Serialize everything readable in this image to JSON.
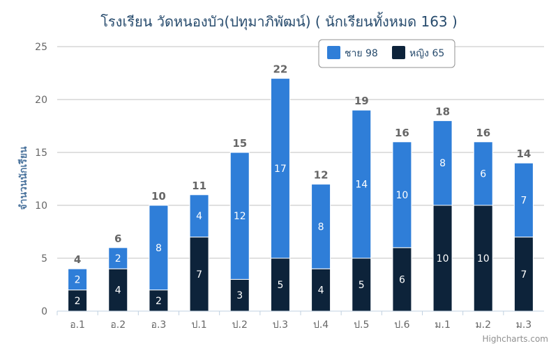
{
  "chart_data": {
    "type": "bar",
    "stacked": true,
    "title": "โรงเรียน วัดหนองบัว(ปทุมาภิพัฒน์) ( นักเรียนทั้งหมด 163 )",
    "ylabel": "จำนวนนักเรียน",
    "xlabel": "",
    "ylim": [
      0,
      25
    ],
    "yticks": [
      0,
      5,
      10,
      15,
      20,
      25
    ],
    "grid": true,
    "legend_position": "top-right",
    "categories": [
      "อ.1",
      "อ.2",
      "อ.3",
      "ป.1",
      "ป.2",
      "ป.3",
      "ป.4",
      "ป.5",
      "ป.6",
      "ม.1",
      "ม.2",
      "ม.3"
    ],
    "series": [
      {
        "name": "ชาย",
        "legend_label": "ชาย 98",
        "color": "#2f7ed8",
        "values": [
          2,
          2,
          8,
          4,
          12,
          17,
          8,
          14,
          10,
          8,
          6,
          7
        ]
      },
      {
        "name": "หญิง",
        "legend_label": "หญิง 65",
        "color": "#0d233a",
        "values": [
          2,
          4,
          2,
          7,
          3,
          5,
          4,
          5,
          6,
          10,
          10,
          7
        ]
      }
    ],
    "totals": [
      4,
      6,
      10,
      11,
      15,
      22,
      12,
      19,
      16,
      18,
      16,
      14
    ],
    "credits": "Highcharts.com"
  }
}
